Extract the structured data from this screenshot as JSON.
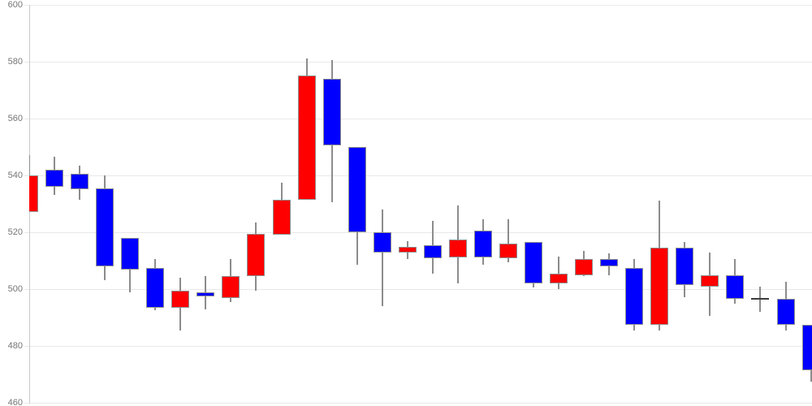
{
  "chart_data": {
    "type": "candlestick",
    "title": "",
    "xlabel": "",
    "ylabel": "",
    "grid": true,
    "legend": "none",
    "y_axis": {
      "ticks": [
        600,
        580,
        560,
        540,
        520,
        500,
        480,
        460
      ],
      "max": 600,
      "min": 460
    },
    "x_axis": {
      "ticks": [],
      "labels_visible": false
    },
    "colors": {
      "up": "#ff0000",
      "down": "#0000ff",
      "doji": "#3c3c3c",
      "wick": "#8c8c8c",
      "body_stroke": "#8f8f8f",
      "grid": "#e8e8e8",
      "axis_line": "#c9c9c9",
      "label": "#757575",
      "background": "#ffffff"
    },
    "candles": [
      {
        "open": 527,
        "high": 547,
        "low": 527,
        "close": 540,
        "dir": "up"
      },
      {
        "open": 542,
        "high": 546.5,
        "low": 533,
        "close": 536,
        "dir": "down"
      },
      {
        "open": 540.5,
        "high": 543.5,
        "low": 531.5,
        "close": 535,
        "dir": "down"
      },
      {
        "open": 535.5,
        "high": 540,
        "low": 503,
        "close": 508,
        "dir": "down"
      },
      {
        "open": 518,
        "high": 518,
        "low": 499,
        "close": 507,
        "dir": "down"
      },
      {
        "open": 507.5,
        "high": 510.5,
        "low": 492.5,
        "close": 493.5,
        "dir": "down"
      },
      {
        "open": 493.5,
        "high": 504,
        "low": 485.5,
        "close": 499.5,
        "dir": "up"
      },
      {
        "open": 499,
        "high": 504.5,
        "low": 493,
        "close": 497.5,
        "dir": "down"
      },
      {
        "open": 497,
        "high": 510.5,
        "low": 495.5,
        "close": 504.5,
        "dir": "up"
      },
      {
        "open": 504.5,
        "high": 523.5,
        "low": 499.5,
        "close": 519.5,
        "dir": "up"
      },
      {
        "open": 519,
        "high": 537.5,
        "low": 519,
        "close": 531.5,
        "dir": "up"
      },
      {
        "open": 531.5,
        "high": 581,
        "low": 531.5,
        "close": 575,
        "dir": "up"
      },
      {
        "open": 574,
        "high": 580.5,
        "low": 530.5,
        "close": 550.5,
        "dir": "down"
      },
      {
        "open": 550,
        "high": 550,
        "low": 508.5,
        "close": 520,
        "dir": "down"
      },
      {
        "open": 520,
        "high": 528,
        "low": 494,
        "close": 513,
        "dir": "down"
      },
      {
        "open": 513,
        "high": 517,
        "low": 510.5,
        "close": 515,
        "dir": "up"
      },
      {
        "open": 515.5,
        "high": 524,
        "low": 505.5,
        "close": 511,
        "dir": "down"
      },
      {
        "open": 511,
        "high": 529.5,
        "low": 502,
        "close": 517.5,
        "dir": "up"
      },
      {
        "open": 520.5,
        "high": 524.5,
        "low": 508.5,
        "close": 511,
        "dir": "down"
      },
      {
        "open": 511,
        "high": 524.5,
        "low": 509.5,
        "close": 516,
        "dir": "up"
      },
      {
        "open": 516.5,
        "high": 516.5,
        "low": 500.5,
        "close": 502,
        "dir": "down"
      },
      {
        "open": 502,
        "high": 511.5,
        "low": 500,
        "close": 505.5,
        "dir": "up"
      },
      {
        "open": 505,
        "high": 513.5,
        "low": 504.5,
        "close": 510.5,
        "dir": "up"
      },
      {
        "open": 510.5,
        "high": 512.5,
        "low": 505,
        "close": 508,
        "dir": "down"
      },
      {
        "open": 507.5,
        "high": 510.5,
        "low": 485.5,
        "close": 487.5,
        "dir": "down"
      },
      {
        "open": 487.5,
        "high": 531,
        "low": 485.5,
        "close": 514.5,
        "dir": "up"
      },
      {
        "open": 514.5,
        "high": 516.5,
        "low": 497,
        "close": 501.5,
        "dir": "down"
      },
      {
        "open": 501,
        "high": 513,
        "low": 490.5,
        "close": 505,
        "dir": "up"
      },
      {
        "open": 505,
        "high": 510.5,
        "low": 495,
        "close": 496.5,
        "dir": "down"
      },
      {
        "open": 496.5,
        "high": 501,
        "low": 492,
        "close": 496.5,
        "dir": "doji"
      },
      {
        "open": 496.5,
        "high": 502.5,
        "low": 485.5,
        "close": 487.5,
        "dir": "down"
      },
      {
        "open": 487.5,
        "high": 487.5,
        "low": 467.5,
        "close": 471.5,
        "dir": "down"
      }
    ]
  }
}
